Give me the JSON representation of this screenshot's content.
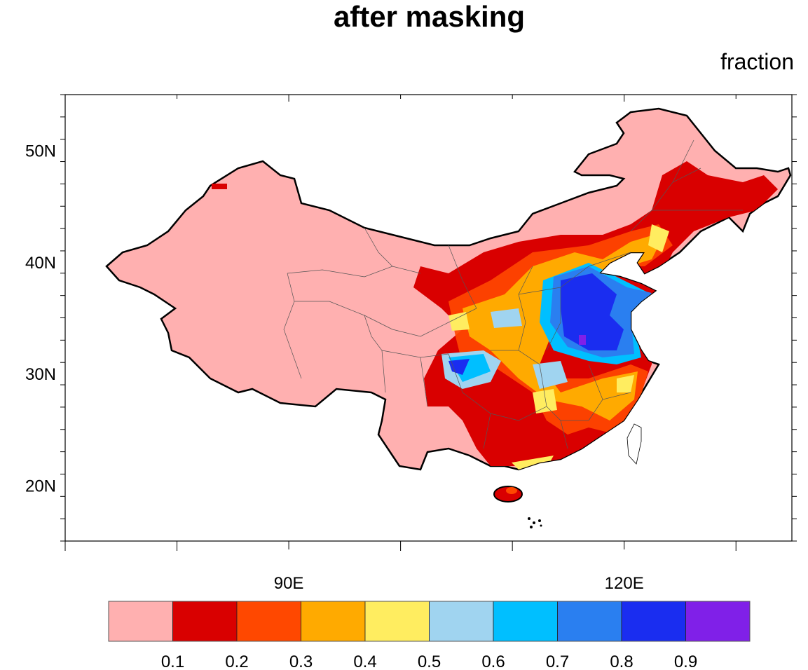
{
  "title": "after masking",
  "units": "fraction",
  "map": {
    "lon_range": [
      70,
      135
    ],
    "lat_range": [
      15,
      55
    ],
    "lon_ticks": [
      {
        "value": 90,
        "label": "90E"
      },
      {
        "value": 120,
        "label": "120E"
      }
    ],
    "lat_ticks": [
      {
        "value": 50,
        "label": "50N"
      },
      {
        "value": 40,
        "label": "40N"
      },
      {
        "value": 30,
        "label": "30N"
      },
      {
        "value": 20,
        "label": "20N"
      }
    ],
    "land_color": "#ffb0b0"
  },
  "colorbar": {
    "colors": [
      "#ffb0b0",
      "#d90000",
      "#ff4800",
      "#ffaa00",
      "#ffed60",
      "#a0d4f0",
      "#00bfff",
      "#2a7ff0",
      "#1a2df0",
      "#8020e8"
    ],
    "labels": [
      "0.1",
      "0.2",
      "0.3",
      "0.4",
      "0.5",
      "0.6",
      "0.7",
      "0.8",
      "0.9"
    ]
  }
}
